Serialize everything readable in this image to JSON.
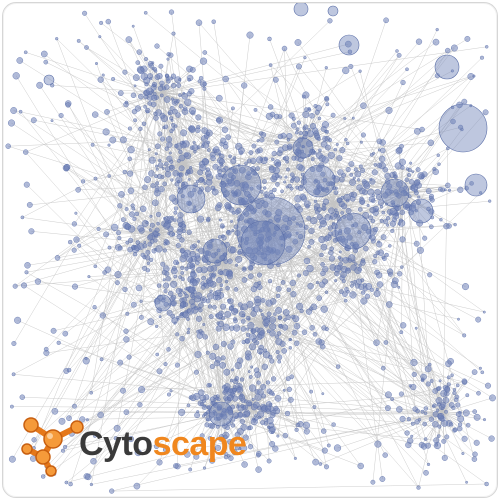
{
  "logo": {
    "word_part_a": "Cyto",
    "word_part_b": "scape",
    "icon": "network-node-icon"
  },
  "colors": {
    "node_fill": "#6f82b8",
    "node_stroke": "#5b6fa8",
    "edge": "#c4c4c4",
    "logo_dark": "#3a3a3a",
    "logo_orange": "#f0871e"
  }
}
